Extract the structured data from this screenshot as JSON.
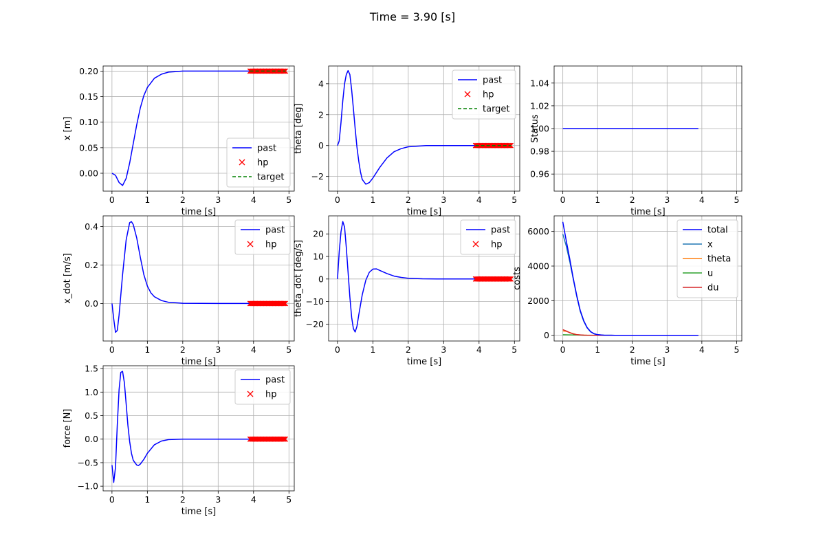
{
  "figure": {
    "title": "Time = 3.90 [s]"
  },
  "colors": {
    "past": "#0000ff",
    "hp": "#ff0000",
    "target": "#008000",
    "x": "#1f77b4",
    "theta": "#ff7f0e",
    "u": "#2ca02c",
    "du": "#d62728",
    "grid": "#b0b0b0"
  },
  "chart_data": [
    {
      "id": "x",
      "type": "line",
      "ylabel": "x [m]",
      "xlabel": "time [s]",
      "xlim": [
        -0.25,
        5.15
      ],
      "ylim": [
        -0.035,
        0.21
      ],
      "xticks": [
        0,
        1,
        2,
        3,
        4,
        5
      ],
      "yticks": [
        0.0,
        0.05,
        0.1,
        0.15,
        0.2
      ],
      "ytick_labels": [
        "0.00",
        "0.05",
        "0.10",
        "0.15",
        "0.20"
      ],
      "legend": [
        "past",
        "hp",
        "target"
      ],
      "legend_loc": "lower right",
      "past": [
        [
          0,
          0
        ],
        [
          0.1,
          -0.004
        ],
        [
          0.2,
          -0.018
        ],
        [
          0.3,
          -0.024
        ],
        [
          0.4,
          -0.01
        ],
        [
          0.5,
          0.02
        ],
        [
          0.6,
          0.058
        ],
        [
          0.7,
          0.095
        ],
        [
          0.8,
          0.128
        ],
        [
          0.9,
          0.152
        ],
        [
          1.0,
          0.168
        ],
        [
          1.2,
          0.186
        ],
        [
          1.4,
          0.194
        ],
        [
          1.6,
          0.198
        ],
        [
          2.0,
          0.2
        ],
        [
          3.0,
          0.2
        ],
        [
          3.9,
          0.2
        ]
      ],
      "hp_range": [
        3.9,
        4.9
      ],
      "hp_value": 0.2,
      "target_range": [
        3.9,
        4.9
      ],
      "target_value": 0.2
    },
    {
      "id": "theta",
      "type": "line",
      "ylabel": "theta [deg]",
      "xlabel": "time [s]",
      "xlim": [
        -0.25,
        5.15
      ],
      "ylim": [
        -2.95,
        5.15
      ],
      "xticks": [
        0,
        1,
        2,
        3,
        4,
        5
      ],
      "yticks": [
        -2,
        0,
        2,
        4
      ],
      "ytick_labels": [
        "−2",
        "0",
        "2",
        "4"
      ],
      "legend": [
        "past",
        "hp",
        "target"
      ],
      "legend_loc": "upper right",
      "past": [
        [
          0,
          0
        ],
        [
          0.05,
          0.3
        ],
        [
          0.1,
          1.5
        ],
        [
          0.15,
          2.9
        ],
        [
          0.2,
          4.0
        ],
        [
          0.25,
          4.6
        ],
        [
          0.3,
          4.85
        ],
        [
          0.35,
          4.6
        ],
        [
          0.4,
          3.6
        ],
        [
          0.45,
          2.4
        ],
        [
          0.5,
          1.1
        ],
        [
          0.55,
          -0.1
        ],
        [
          0.6,
          -1.0
        ],
        [
          0.65,
          -1.7
        ],
        [
          0.7,
          -2.2
        ],
        [
          0.8,
          -2.5
        ],
        [
          0.9,
          -2.4
        ],
        [
          1.0,
          -2.1
        ],
        [
          1.2,
          -1.4
        ],
        [
          1.4,
          -0.8
        ],
        [
          1.6,
          -0.4
        ],
        [
          1.8,
          -0.2
        ],
        [
          2.0,
          -0.08
        ],
        [
          2.5,
          0
        ],
        [
          3.0,
          0
        ],
        [
          3.9,
          0
        ]
      ],
      "hp_range": [
        3.9,
        4.9
      ],
      "hp_value": 0,
      "target_range": [
        3.9,
        4.9
      ],
      "target_value": 0
    },
    {
      "id": "status",
      "type": "line",
      "ylabel": "Status",
      "xlabel": "time [s]",
      "xlim": [
        -0.25,
        5.15
      ],
      "ylim": [
        0.945,
        1.055
      ],
      "xticks": [
        0,
        1,
        2,
        3,
        4,
        5
      ],
      "yticks": [
        0.96,
        0.98,
        1.0,
        1.02,
        1.04
      ],
      "ytick_labels": [
        "0.96",
        "0.98",
        "1.00",
        "1.02",
        "1.04"
      ],
      "legend": [],
      "past": [
        [
          0,
          1.0
        ],
        [
          3.9,
          1.0
        ]
      ]
    },
    {
      "id": "x_dot",
      "type": "line",
      "ylabel": "x_dot [m/s]",
      "xlabel": "time [s]",
      "xlim": [
        -0.25,
        5.15
      ],
      "ylim": [
        -0.195,
        0.455
      ],
      "xticks": [
        0,
        1,
        2,
        3,
        4,
        5
      ],
      "yticks": [
        0.0,
        0.2,
        0.4
      ],
      "ytick_labels": [
        "0.0",
        "0.2",
        "0.4"
      ],
      "legend": [
        "past",
        "hp"
      ],
      "legend_loc": "upper right",
      "past": [
        [
          0,
          0
        ],
        [
          0.05,
          -0.08
        ],
        [
          0.1,
          -0.15
        ],
        [
          0.15,
          -0.14
        ],
        [
          0.2,
          -0.06
        ],
        [
          0.3,
          0.15
        ],
        [
          0.4,
          0.33
        ],
        [
          0.5,
          0.42
        ],
        [
          0.55,
          0.425
        ],
        [
          0.6,
          0.41
        ],
        [
          0.7,
          0.34
        ],
        [
          0.8,
          0.24
        ],
        [
          0.9,
          0.15
        ],
        [
          1.0,
          0.09
        ],
        [
          1.1,
          0.055
        ],
        [
          1.2,
          0.035
        ],
        [
          1.4,
          0.015
        ],
        [
          1.6,
          0.006
        ],
        [
          2.0,
          0.001
        ],
        [
          3.0,
          0
        ],
        [
          3.9,
          0
        ]
      ],
      "hp_range": [
        3.9,
        4.9
      ],
      "hp_value": 0
    },
    {
      "id": "theta_dot",
      "type": "line",
      "ylabel": "theta_dot [deg/s]",
      "xlabel": "time [s]",
      "xlim": [
        -0.25,
        5.15
      ],
      "ylim": [
        -27.5,
        28
      ],
      "xticks": [
        0,
        1,
        2,
        3,
        4,
        5
      ],
      "yticks": [
        -20,
        -10,
        0,
        10,
        20
      ],
      "ytick_labels": [
        "−20",
        "−10",
        "0",
        "10",
        "20"
      ],
      "legend": [
        "past",
        "hp"
      ],
      "legend_loc": "upper right",
      "past": [
        [
          0,
          0
        ],
        [
          0.05,
          12
        ],
        [
          0.1,
          21
        ],
        [
          0.15,
          25.5
        ],
        [
          0.2,
          23
        ],
        [
          0.25,
          14
        ],
        [
          0.3,
          3
        ],
        [
          0.35,
          -8
        ],
        [
          0.4,
          -17
        ],
        [
          0.45,
          -22
        ],
        [
          0.5,
          -23.5
        ],
        [
          0.55,
          -21
        ],
        [
          0.6,
          -16
        ],
        [
          0.7,
          -7
        ],
        [
          0.8,
          -0.5
        ],
        [
          0.9,
          3
        ],
        [
          1.0,
          4.4
        ],
        [
          1.1,
          4.5
        ],
        [
          1.2,
          3.8
        ],
        [
          1.4,
          2.4
        ],
        [
          1.6,
          1.3
        ],
        [
          1.8,
          0.7
        ],
        [
          2.0,
          0.3
        ],
        [
          2.4,
          0.1
        ],
        [
          3.0,
          0
        ],
        [
          3.9,
          0
        ]
      ],
      "hp_range": [
        3.9,
        4.9
      ],
      "hp_value": 0
    },
    {
      "id": "costs",
      "type": "line",
      "ylabel": "costs",
      "xlabel": "time [s]",
      "xlim": [
        -0.25,
        5.15
      ],
      "ylim": [
        -330,
        6900
      ],
      "xticks": [
        0,
        1,
        2,
        3,
        4,
        5
      ],
      "yticks": [
        0,
        2000,
        4000,
        6000
      ],
      "ytick_labels": [
        "0",
        "2000",
        "4000",
        "6000"
      ],
      "legend": [
        "total",
        "x",
        "theta",
        "u",
        "du"
      ],
      "legend_loc": "upper right",
      "series": [
        {
          "name": "total",
          "color_key": "past",
          "values": [
            [
              0,
              6550
            ],
            [
              0.1,
              5450
            ],
            [
              0.2,
              4400
            ],
            [
              0.3,
              3300
            ],
            [
              0.4,
              2300
            ],
            [
              0.5,
              1450
            ],
            [
              0.6,
              850
            ],
            [
              0.7,
              450
            ],
            [
              0.8,
              210
            ],
            [
              0.9,
              90
            ],
            [
              1.0,
              35
            ],
            [
              1.2,
              5
            ],
            [
              1.5,
              0
            ],
            [
              3.9,
              0
            ]
          ]
        },
        {
          "name": "x",
          "color_key": "x",
          "values": [
            [
              0,
              5850
            ],
            [
              0.1,
              5150
            ],
            [
              0.2,
              4250
            ],
            [
              0.3,
              3250
            ],
            [
              0.4,
              2250
            ],
            [
              0.5,
              1400
            ],
            [
              0.6,
              820
            ],
            [
              0.7,
              430
            ],
            [
              0.8,
              200
            ],
            [
              0.9,
              85
            ],
            [
              1.0,
              33
            ],
            [
              1.2,
              4
            ],
            [
              1.5,
              0
            ],
            [
              3.9,
              0
            ]
          ]
        },
        {
          "name": "theta",
          "color_key": "theta",
          "values": [
            [
              0,
              250
            ],
            [
              0.1,
              230
            ],
            [
              0.2,
              160
            ],
            [
              0.3,
              90
            ],
            [
              0.4,
              40
            ],
            [
              0.5,
              15
            ],
            [
              0.7,
              3
            ],
            [
              1.0,
              0
            ],
            [
              3.9,
              0
            ]
          ]
        },
        {
          "name": "u",
          "color_key": "u",
          "values": [
            [
              0,
              30
            ],
            [
              0.2,
              25
            ],
            [
              0.4,
              15
            ],
            [
              0.6,
              5
            ],
            [
              1.0,
              0
            ],
            [
              3.9,
              0
            ]
          ]
        },
        {
          "name": "du",
          "color_key": "du",
          "values": [
            [
              0,
              330
            ],
            [
              0.1,
              250
            ],
            [
              0.2,
              150
            ],
            [
              0.3,
              80
            ],
            [
              0.4,
              35
            ],
            [
              0.6,
              8
            ],
            [
              1.0,
              0
            ],
            [
              3.9,
              0
            ]
          ]
        }
      ]
    },
    {
      "id": "force",
      "type": "line",
      "ylabel": "force [N]",
      "xlabel": "time [s]",
      "xlim": [
        -0.25,
        5.15
      ],
      "ylim": [
        -1.1,
        1.56
      ],
      "xticks": [
        0,
        1,
        2,
        3,
        4,
        5
      ],
      "yticks": [
        -1.0,
        -0.5,
        0.0,
        0.5,
        1.0,
        1.5
      ],
      "ytick_labels": [
        "−1.0",
        "−0.5",
        "0.0",
        "0.5",
        "1.0",
        "1.5"
      ],
      "legend": [
        "past",
        "hp"
      ],
      "legend_loc": "upper right",
      "past": [
        [
          0,
          -0.55
        ],
        [
          0.05,
          -0.92
        ],
        [
          0.1,
          -0.6
        ],
        [
          0.15,
          0.3
        ],
        [
          0.2,
          1.05
        ],
        [
          0.25,
          1.42
        ],
        [
          0.3,
          1.44
        ],
        [
          0.35,
          1.2
        ],
        [
          0.4,
          0.75
        ],
        [
          0.45,
          0.3
        ],
        [
          0.5,
          -0.05
        ],
        [
          0.55,
          -0.3
        ],
        [
          0.6,
          -0.45
        ],
        [
          0.7,
          -0.55
        ],
        [
          0.75,
          -0.56
        ],
        [
          0.8,
          -0.53
        ],
        [
          0.9,
          -0.43
        ],
        [
          1.0,
          -0.3
        ],
        [
          1.2,
          -0.12
        ],
        [
          1.4,
          -0.04
        ],
        [
          1.6,
          -0.01
        ],
        [
          2.0,
          0
        ],
        [
          3.0,
          0
        ],
        [
          3.9,
          0
        ]
      ],
      "hp_range": [
        3.9,
        4.9
      ],
      "hp_value": 0
    }
  ]
}
